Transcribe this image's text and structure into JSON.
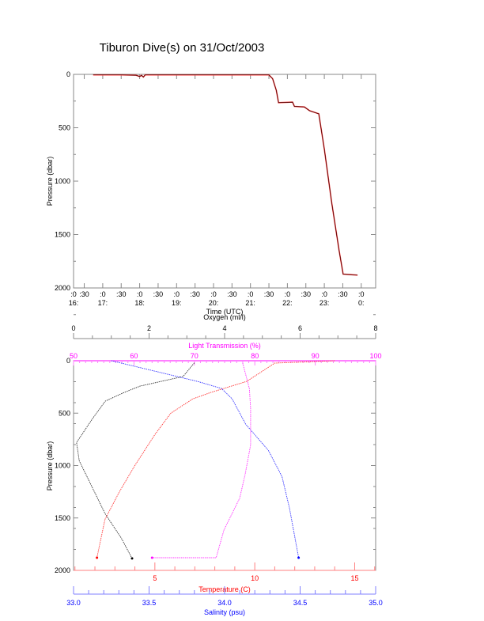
{
  "title": "Tiburon Dive(s) on 31/Oct/2003",
  "colors": {
    "temperature": "#ff0000",
    "salinity": "#0000ff",
    "oxygen": "#000000",
    "transmission": "#ff00ff",
    "trace": "#b00000"
  },
  "chart_data": [
    {
      "type": "line",
      "xlabel": "Time (UTC)",
      "ylabel": "Pressure (dbar)",
      "xlim": [
        16.21,
        24.39
      ],
      "ylim": [
        2000,
        0
      ],
      "yticks": [
        0,
        500,
        1000,
        1500,
        2000
      ],
      "xticks": [
        {
          "t": 16.21,
          "top": ":0",
          "bottom": "16:"
        },
        {
          "t": 16.5,
          "top": ":30",
          "bottom": ""
        },
        {
          "t": 17,
          "top": ":0",
          "bottom": "17:"
        },
        {
          "t": 17.5,
          "top": ":30",
          "bottom": ""
        },
        {
          "t": 18,
          "top": ":0",
          "bottom": "18:"
        },
        {
          "t": 18.5,
          "top": ":30",
          "bottom": ""
        },
        {
          "t": 19,
          "top": ":0",
          "bottom": "19:"
        },
        {
          "t": 19.5,
          "top": ":30",
          "bottom": ""
        },
        {
          "t": 20,
          "top": ":0",
          "bottom": "20:"
        },
        {
          "t": 20.5,
          "top": ":30",
          "bottom": ""
        },
        {
          "t": 21,
          "top": ":0",
          "bottom": "21:"
        },
        {
          "t": 21.5,
          "top": ":30",
          "bottom": ""
        },
        {
          "t": 22,
          "top": ":0",
          "bottom": "22:"
        },
        {
          "t": 22.5,
          "top": ":30",
          "bottom": ""
        },
        {
          "t": 23,
          "top": ":0",
          "bottom": "23:"
        },
        {
          "t": 23.5,
          "top": ":30",
          "bottom": ""
        },
        {
          "t": 24,
          "top": ":0",
          "bottom": "0:"
        }
      ],
      "series": [
        {
          "name": "Pressure",
          "x": [
            16.74,
            17.5,
            17.9,
            18.0,
            18.05,
            18.1,
            18.15,
            21.5,
            21.6,
            21.7,
            21.76,
            22.14,
            22.19,
            22.46,
            22.6,
            22.85,
            23.0,
            23.2,
            23.4,
            23.51,
            23.7,
            23.9
          ],
          "y": [
            5,
            5,
            8,
            20,
            10,
            25,
            5,
            5,
            40,
            150,
            265,
            260,
            300,
            305,
            340,
            370,
            700,
            1200,
            1650,
            1870,
            1875,
            1880
          ]
        }
      ]
    },
    {
      "type": "line",
      "ylabel": "Pressure (dbar)",
      "ylim": [
        2000,
        0
      ],
      "yticks": [
        0,
        500,
        1000,
        1500,
        2000
      ],
      "axes": {
        "oxygen": {
          "label": "Oxygen (ml/l)",
          "range": [
            0,
            8
          ],
          "ticks": [
            0,
            2,
            4,
            6,
            8
          ]
        },
        "transmission": {
          "label": "Light Transmission (%)",
          "range": [
            50,
            100
          ],
          "ticks": [
            50,
            60,
            70,
            80,
            90,
            100
          ]
        },
        "temperature": {
          "label": "Temperature (C)",
          "range": [
            0.93,
            16.05
          ],
          "ticks": [
            5,
            10,
            15
          ]
        },
        "salinity": {
          "label": "Salinity (psu)",
          "range": [
            33.0,
            35.0
          ],
          "ticks": [
            "33.0",
            "33.5",
            "34.0",
            "34.5",
            "35.0"
          ]
        }
      },
      "series": [
        {
          "name": "Oxygen",
          "axis": "oxygen",
          "x": [
            3.2,
            2.9,
            1.76,
            1.34,
            0.84,
            0.5,
            0.08,
            0.15,
            0.5,
            0.84,
            1.26,
            1.55
          ],
          "p": [
            20,
            150,
            242,
            303,
            386,
            553,
            780,
            955,
            1212,
            1462,
            1690,
            1886
          ]
        },
        {
          "name": "Temperature",
          "axis": "temperature",
          "x": [
            14.0,
            11.0,
            9.6,
            7.8,
            6.9,
            5.8,
            5.0,
            3.97,
            3.2,
            2.5,
            2.1
          ],
          "p": [
            0,
            23,
            197,
            303,
            364,
            500,
            705,
            1008,
            1258,
            1515,
            1879
          ]
        },
        {
          "name": "Salinity",
          "axis": "salinity",
          "x": [
            33.25,
            33.6,
            33.82,
            33.98,
            34.05,
            34.14,
            34.29,
            34.38,
            34.43,
            34.49
          ],
          "p": [
            0,
            121,
            197,
            265,
            364,
            606,
            856,
            1106,
            1409,
            1879
          ]
        },
        {
          "name": "Light Transmission",
          "axis": "transmission",
          "x": [
            78,
            79.1,
            79.3,
            79.3,
            78.4,
            77.5,
            74.9,
            73.6,
            63
          ],
          "p": [
            23,
            265,
            455,
            803,
            1083,
            1311,
            1614,
            1879,
            1879
          ]
        }
      ]
    }
  ]
}
